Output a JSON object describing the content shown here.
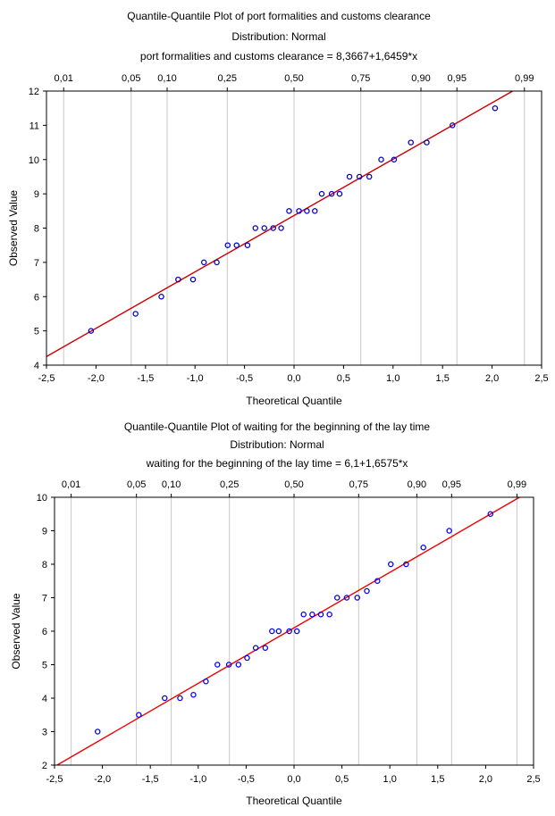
{
  "chart_data": [
    {
      "type": "scatter",
      "title": "Quantile-Quantile Plot of  port formalities and customs clearance",
      "subtitle": "Distribution: Normal",
      "equation": "port formalities and customs clearance = 8,3667+1,6459*x",
      "xlabel": "Theoretical Quantile",
      "ylabel": "Observed Value",
      "xlim": [
        -2.5,
        2.5
      ],
      "ylim": [
        4,
        12
      ],
      "x_ticks": [
        "-2,5",
        "-2,0",
        "-1,5",
        "-1,0",
        "-0,5",
        "0,0",
        "0,5",
        "1,0",
        "1,5",
        "2,0",
        "2,5"
      ],
      "y_ticks": [
        "4",
        "5",
        "6",
        "7",
        "8",
        "9",
        "10",
        "11",
        "12"
      ],
      "top_ticks": [
        "0,01",
        "0,05",
        "0,10",
        "0,25",
        "0,50",
        "0,75",
        "0,90",
        "0,95",
        "0,99"
      ],
      "top_tick_probs": [
        0.01,
        0.05,
        0.1,
        0.25,
        0.5,
        0.75,
        0.9,
        0.95,
        0.99
      ],
      "fit": {
        "intercept": 8.3667,
        "slope": 1.6459
      },
      "grid": "vertical lines at top quantiles",
      "point_color": "#0000cc",
      "line_color": "#cc0000",
      "points": [
        [
          -2.05,
          5.0
        ],
        [
          -1.6,
          5.5
        ],
        [
          -1.34,
          6.0
        ],
        [
          -1.17,
          6.5
        ],
        [
          -1.02,
          6.5
        ],
        [
          -0.91,
          7.0
        ],
        [
          -0.78,
          7.0
        ],
        [
          -0.67,
          7.5
        ],
        [
          -0.58,
          7.5
        ],
        [
          -0.47,
          7.5
        ],
        [
          -0.39,
          8.0
        ],
        [
          -0.3,
          8.0
        ],
        [
          -0.21,
          8.0
        ],
        [
          -0.13,
          8.0
        ],
        [
          -0.05,
          8.5
        ],
        [
          0.05,
          8.5
        ],
        [
          0.13,
          8.5
        ],
        [
          0.21,
          8.5
        ],
        [
          0.28,
          9.0
        ],
        [
          0.38,
          9.0
        ],
        [
          0.46,
          9.0
        ],
        [
          0.56,
          9.5
        ],
        [
          0.66,
          9.5
        ],
        [
          0.76,
          9.5
        ],
        [
          0.88,
          10.0
        ],
        [
          1.01,
          10.0
        ],
        [
          1.18,
          10.5
        ],
        [
          1.34,
          10.5
        ],
        [
          1.6,
          11.0
        ],
        [
          2.03,
          11.5
        ]
      ]
    },
    {
      "type": "scatter",
      "title": "Quantile-Quantile Plot of waiting for the beginning of the lay time",
      "subtitle": "Distribution: Normal",
      "equation": "waiting for the beginning of the lay time = 6,1+1,6575*x",
      "xlabel": "Theoretical Quantile",
      "ylabel": "Observed Value",
      "xlim": [
        -2.5,
        2.5
      ],
      "ylim": [
        2,
        10
      ],
      "x_ticks": [
        "-2,5",
        "-2,0",
        "-1,5",
        "-1,0",
        "-0,5",
        "0,0",
        "0,5",
        "1,0",
        "1,5",
        "2,0",
        "2,5"
      ],
      "y_ticks": [
        "2",
        "3",
        "4",
        "5",
        "6",
        "7",
        "8",
        "9",
        "10"
      ],
      "top_ticks": [
        "0,01",
        "0,05",
        "0,10",
        "0,25",
        "0,50",
        "0,75",
        "0,90",
        "0,95",
        "0,99"
      ],
      "top_tick_probs": [
        0.01,
        0.05,
        0.1,
        0.25,
        0.5,
        0.75,
        0.9,
        0.95,
        0.99
      ],
      "fit": {
        "intercept": 6.1,
        "slope": 1.6575
      },
      "grid": "vertical lines at top quantiles",
      "point_color": "#0000ee",
      "line_color": "#ee0000",
      "points": [
        [
          -2.05,
          3.0
        ],
        [
          -1.62,
          3.5
        ],
        [
          -1.35,
          4.0
        ],
        [
          -1.19,
          4.0
        ],
        [
          -1.05,
          4.1
        ],
        [
          -0.92,
          4.5
        ],
        [
          -0.8,
          5.0
        ],
        [
          -0.68,
          5.0
        ],
        [
          -0.58,
          5.0
        ],
        [
          -0.49,
          5.2
        ],
        [
          -0.4,
          5.5
        ],
        [
          -0.3,
          5.5
        ],
        [
          -0.23,
          6.0
        ],
        [
          -0.16,
          6.0
        ],
        [
          -0.05,
          6.0
        ],
        [
          0.03,
          6.0
        ],
        [
          0.1,
          6.5
        ],
        [
          0.19,
          6.5
        ],
        [
          0.28,
          6.5
        ],
        [
          0.37,
          6.5
        ],
        [
          0.45,
          7.0
        ],
        [
          0.55,
          7.0
        ],
        [
          0.66,
          7.0
        ],
        [
          0.76,
          7.2
        ],
        [
          0.87,
          7.5
        ],
        [
          1.01,
          8.0
        ],
        [
          1.17,
          8.0
        ],
        [
          1.35,
          8.5
        ],
        [
          1.62,
          9.0
        ],
        [
          2.05,
          9.5
        ]
      ]
    }
  ]
}
